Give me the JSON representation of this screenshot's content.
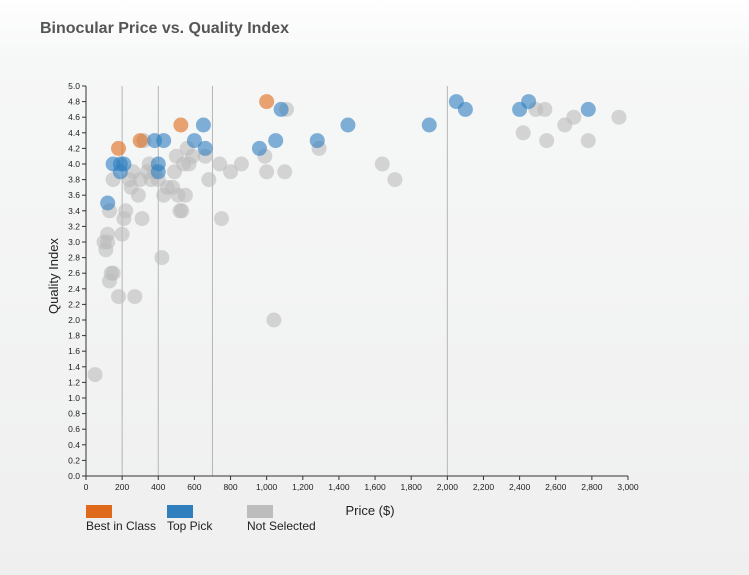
{
  "chart_data": {
    "type": "scatter",
    "title": "Binocular Price vs. Quality Index",
    "xlabel": "Price ($)",
    "ylabel": "Quality Index",
    "xlim": [
      0,
      3000
    ],
    "ylim": [
      0,
      5.0
    ],
    "x_ticks": [
      0,
      200,
      400,
      600,
      800,
      1000,
      1200,
      1400,
      1600,
      1800,
      2000,
      2200,
      2400,
      2600,
      2800,
      3000
    ],
    "x_tick_labels": [
      "0",
      "200",
      "400",
      "600",
      "800",
      "1,000",
      "1,200",
      "1,400",
      "1,600",
      "1,800",
      "2,000",
      "2,200",
      "2,400",
      "2,600",
      "2,800",
      "3,000"
    ],
    "y_ticks": [
      0.0,
      0.2,
      0.4,
      0.6,
      0.8,
      1.0,
      1.2,
      1.4,
      1.6,
      1.8,
      2.0,
      2.2,
      2.4,
      2.6,
      2.8,
      3.0,
      3.2,
      3.4,
      3.6,
      3.8,
      4.0,
      4.2,
      4.4,
      4.6,
      4.8,
      5.0
    ],
    "y_tick_labels": [
      "0.0",
      "0.2",
      "0.4",
      "0.6",
      "0.8",
      "1.0",
      "1.2",
      "1.4",
      "1.6",
      "1.8",
      "2.0",
      "2.2",
      "2.4",
      "2.6",
      "2.8",
      "3.0",
      "3.2",
      "3.4",
      "3.6",
      "3.8",
      "4.0",
      "4.2",
      "4.4",
      "4.6",
      "4.8",
      "5.0"
    ],
    "reference_lines_x": [
      200,
      400,
      700,
      2000
    ],
    "legend_placement": "bottom-left",
    "series": [
      {
        "name": "Best in Class",
        "color": "#e06a1b",
        "points": [
          [
            180,
            4.2
          ],
          [
            300,
            4.3
          ],
          [
            525,
            4.5
          ],
          [
            1000,
            4.8
          ]
        ]
      },
      {
        "name": "Top Pick",
        "color": "#2f7fbf",
        "points": [
          [
            120,
            3.5
          ],
          [
            150,
            4.0
          ],
          [
            190,
            3.9
          ],
          [
            190,
            4.0
          ],
          [
            210,
            4.0
          ],
          [
            380,
            4.3
          ],
          [
            430,
            4.3
          ],
          [
            400,
            3.9
          ],
          [
            400,
            4.0
          ],
          [
            600,
            4.3
          ],
          [
            650,
            4.5
          ],
          [
            660,
            4.2
          ],
          [
            960,
            4.2
          ],
          [
            1050,
            4.3
          ],
          [
            1080,
            4.7
          ],
          [
            1280,
            4.3
          ],
          [
            1450,
            4.5
          ],
          [
            1900,
            4.5
          ],
          [
            2050,
            4.8
          ],
          [
            2100,
            4.7
          ],
          [
            2400,
            4.7
          ],
          [
            2450,
            4.8
          ],
          [
            2780,
            4.7
          ]
        ]
      },
      {
        "name": "Not Selected",
        "color": "#bdbdbd",
        "points": [
          [
            50,
            1.3
          ],
          [
            100,
            3.0
          ],
          [
            110,
            2.9
          ],
          [
            120,
            3.0
          ],
          [
            130,
            2.5
          ],
          [
            140,
            2.6
          ],
          [
            150,
            2.6
          ],
          [
            120,
            3.1
          ],
          [
            130,
            3.4
          ],
          [
            150,
            3.8
          ],
          [
            180,
            2.3
          ],
          [
            200,
            3.1
          ],
          [
            210,
            3.3
          ],
          [
            220,
            3.4
          ],
          [
            240,
            3.8
          ],
          [
            250,
            3.7
          ],
          [
            260,
            3.9
          ],
          [
            270,
            2.3
          ],
          [
            290,
            3.6
          ],
          [
            300,
            3.8
          ],
          [
            310,
            3.3
          ],
          [
            320,
            4.3
          ],
          [
            340,
            3.9
          ],
          [
            350,
            4.0
          ],
          [
            360,
            3.8
          ],
          [
            380,
            3.9
          ],
          [
            400,
            3.8
          ],
          [
            420,
            2.8
          ],
          [
            430,
            3.6
          ],
          [
            450,
            3.7
          ],
          [
            480,
            3.7
          ],
          [
            490,
            3.9
          ],
          [
            500,
            4.1
          ],
          [
            510,
            3.6
          ],
          [
            520,
            3.4
          ],
          [
            530,
            3.4
          ],
          [
            540,
            4.0
          ],
          [
            550,
            3.6
          ],
          [
            560,
            4.2
          ],
          [
            570,
            4.0
          ],
          [
            590,
            4.1
          ],
          [
            660,
            4.1
          ],
          [
            680,
            3.8
          ],
          [
            740,
            4.0
          ],
          [
            750,
            3.3
          ],
          [
            800,
            3.9
          ],
          [
            860,
            4.0
          ],
          [
            990,
            4.1
          ],
          [
            1000,
            3.9
          ],
          [
            1040,
            2.0
          ],
          [
            1100,
            3.9
          ],
          [
            1110,
            4.7
          ],
          [
            1290,
            4.2
          ],
          [
            1640,
            4.0
          ],
          [
            1710,
            3.8
          ],
          [
            2420,
            4.4
          ],
          [
            2490,
            4.7
          ],
          [
            2540,
            4.7
          ],
          [
            2550,
            4.3
          ],
          [
            2650,
            4.5
          ],
          [
            2700,
            4.6
          ],
          [
            2780,
            4.3
          ],
          [
            2950,
            4.6
          ]
        ]
      }
    ]
  }
}
